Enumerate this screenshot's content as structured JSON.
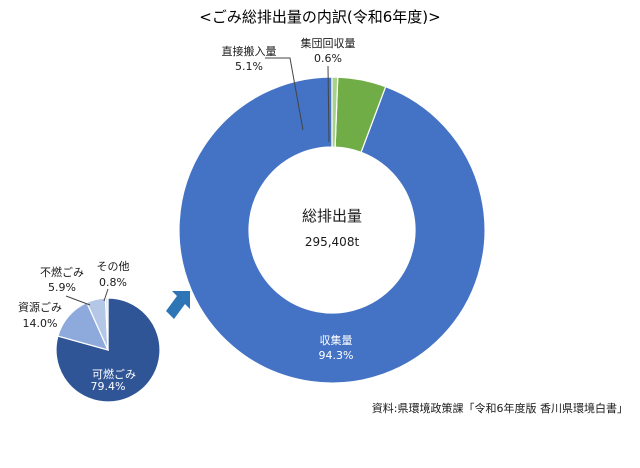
{
  "title": "<ごみ総排出量の内訳(令和6年度)>",
  "source": "資料:県環境政策課「令和6年度版 香川県環境白書」",
  "colors": {
    "collected": "#4472c4",
    "direct": "#70ad47",
    "group": "#a9d18e",
    "combustible": "#2f5597",
    "resource": "#8ea9db",
    "incombustible": "#b4c7e7",
    "other": "#dae3f3",
    "arrow": "#2e75b6"
  },
  "chart_data": [
    {
      "type": "pie",
      "style": "donut",
      "center_label": "総排出量",
      "center_value": "295,408t",
      "slices": [
        {
          "key": "collected",
          "label": "収集量",
          "value": 94.3,
          "value_label": "94.3%"
        },
        {
          "key": "direct",
          "label": "直接搬入量",
          "value": 5.1,
          "value_label": "5.1%"
        },
        {
          "key": "group",
          "label": "集団回収量",
          "value": 0.6,
          "value_label": "0.6%"
        }
      ]
    },
    {
      "type": "pie",
      "breakdown_of": "収集量",
      "slices": [
        {
          "key": "combustible",
          "label": "可燃ごみ",
          "value": 79.4,
          "value_label": "79.4%"
        },
        {
          "key": "resource",
          "label": "資源ごみ",
          "value": 14.0,
          "value_label": "14.0%"
        },
        {
          "key": "incombustible",
          "label": "不燃ごみ",
          "value": 5.9,
          "value_label": "5.9%"
        },
        {
          "key": "other",
          "label": "その他",
          "value": 0.8,
          "value_label": "0.8%"
        }
      ]
    }
  ]
}
